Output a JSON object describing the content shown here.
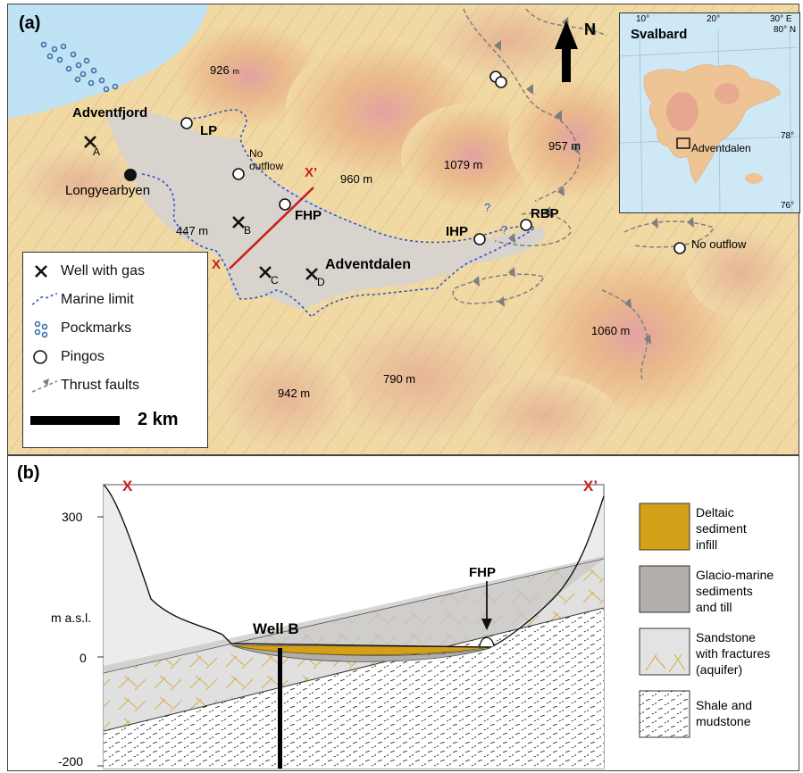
{
  "panel_a": {
    "tag": "(a)",
    "north": "N",
    "places": {
      "fjord": "Adventfjord",
      "town": "Longyearbyen",
      "valley": "Adventdalen"
    },
    "wells": {
      "a": "A",
      "b": "B",
      "c": "C",
      "d": "D"
    },
    "pingos": {
      "lp": "LP",
      "fhp": "FHP",
      "ihp": "IHP",
      "rbp": "RBP",
      "no_outflow_1": "No outflow",
      "no_outflow_2": "No outflow"
    },
    "section_ends": {
      "start": "X",
      "end": "X’"
    },
    "question_mark": "?",
    "elevations": {
      "e926": "926",
      "e926_unit": "m",
      "e960": "960 m",
      "e1079": "1079 m",
      "e957": "957 m",
      "e447": "447 m",
      "e942": "942 m",
      "e790": "790 m",
      "e1060": "1060 m"
    },
    "legend": {
      "well": "Well with gas",
      "marine": "Marine limit",
      "pockmarks": "Pockmarks",
      "pingos": "Pingos",
      "thrust": "Thrust faults",
      "scale": "2 km"
    },
    "inset": {
      "title": "Svalbard",
      "lon_ticks": [
        "10°",
        "20°",
        "30° E"
      ],
      "lat_ticks": [
        "80° N",
        "78°",
        "76°"
      ],
      "site": "Adventdalen"
    }
  },
  "panel_b": {
    "tag": "(b)",
    "ends": {
      "start": "X",
      "end": "X’"
    },
    "y_axis": {
      "label": "m a.s.l.",
      "ticks": [
        "300",
        "0",
        "-200"
      ]
    },
    "well_label": "Well B",
    "pingo_label": "FHP",
    "legend": {
      "deltaic": [
        "Deltaic",
        "sediment",
        "infill"
      ],
      "glacio": [
        "Glacio-marine",
        "sediments",
        "and till"
      ],
      "sandstone": [
        "Sandstone",
        "with fractures",
        "(aquifer)"
      ],
      "shale": [
        "Shale and",
        "mudstone"
      ]
    }
  },
  "colors": {
    "sea": "#bfe3f5",
    "valley": "#d8d4cd",
    "terrain_low": "#f1d9a3",
    "terrain_high": "#e2a2a2",
    "marine_limit": "#2f56c8",
    "section_line": "#c81f1f",
    "fault": "#7f7f7f",
    "deltaic": "#d4a017",
    "glacio": "#b1aeac",
    "sandstone": "#e3e3e3",
    "fracture": "#d7a73c"
  }
}
